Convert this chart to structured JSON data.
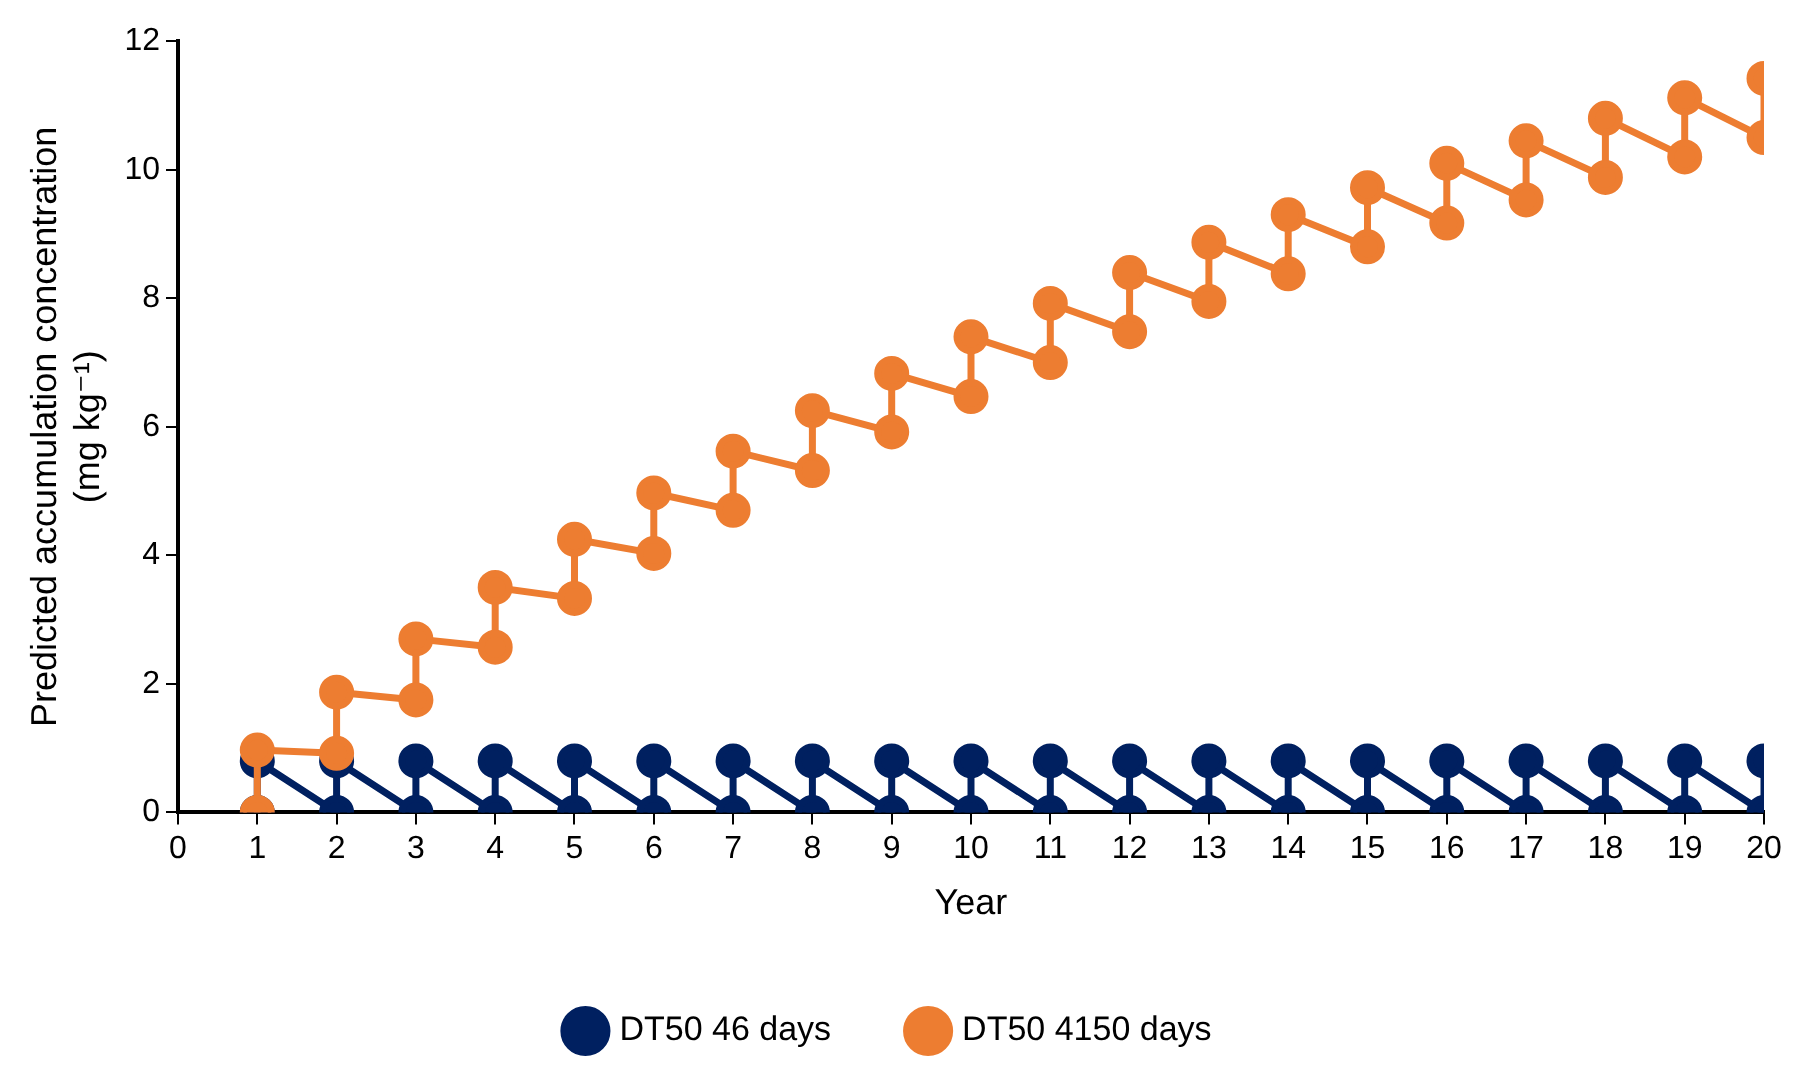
{
  "chart_data": {
    "type": "line",
    "xlabel": "Year",
    "ylabel": "Predicted accumulation concentration (mg kg⁻¹)",
    "xlim": [
      0,
      20
    ],
    "xticks": [
      0,
      1,
      2,
      3,
      4,
      5,
      6,
      7,
      8,
      9,
      10,
      11,
      12,
      13,
      14,
      15,
      16,
      17,
      18,
      19,
      20
    ],
    "ylim": [
      0,
      12
    ],
    "yticks": [
      0,
      2,
      4,
      6,
      8,
      10,
      12
    ],
    "grid": false,
    "legend": "bottom",
    "marker": "circle",
    "line_style": "solid",
    "series": [
      {
        "name": "DT50 46 days",
        "color": "#002060",
        "x": [
          1,
          1,
          2,
          2,
          3,
          3,
          4,
          4,
          5,
          5,
          6,
          6,
          7,
          7,
          8,
          8,
          9,
          9,
          10,
          10,
          11,
          11,
          12,
          12,
          13,
          13,
          14,
          14,
          15,
          15,
          16,
          16,
          17,
          17,
          18,
          18,
          19,
          19,
          20,
          20
        ],
        "values": [
          0,
          0.8,
          0,
          0.8,
          0,
          0.8,
          0,
          0.8,
          0,
          0.8,
          0,
          0.8,
          0,
          0.8,
          0,
          0.8,
          0,
          0.8,
          0,
          0.8,
          0,
          0.8,
          0,
          0.8,
          0,
          0.8,
          0,
          0.8,
          0,
          0.8,
          0,
          0.8,
          0,
          0.8,
          0,
          0.8,
          0,
          0.8,
          0,
          0.8
        ]
      },
      {
        "name": "DT50 4150 days",
        "color": "#ed7d31",
        "x": [
          1,
          1,
          2,
          2,
          3,
          3,
          4,
          4,
          5,
          5,
          6,
          6,
          7,
          7,
          8,
          8,
          9,
          9,
          10,
          10,
          11,
          11,
          12,
          12,
          13,
          13,
          14,
          14,
          15,
          15,
          16,
          16,
          17,
          17,
          18,
          18,
          19,
          19,
          20,
          20
        ],
        "values": [
          0,
          0.97,
          0.92,
          1.87,
          1.75,
          2.7,
          2.57,
          3.5,
          3.33,
          4.25,
          4.03,
          4.97,
          4.7,
          5.62,
          5.32,
          6.25,
          5.92,
          6.83,
          6.47,
          7.4,
          7.0,
          7.92,
          7.48,
          8.4,
          7.95,
          8.87,
          8.38,
          9.3,
          8.8,
          9.72,
          9.17,
          10.1,
          9.53,
          10.45,
          9.88,
          10.8,
          10.2,
          11.12,
          10.5,
          11.42
        ]
      }
    ]
  }
}
